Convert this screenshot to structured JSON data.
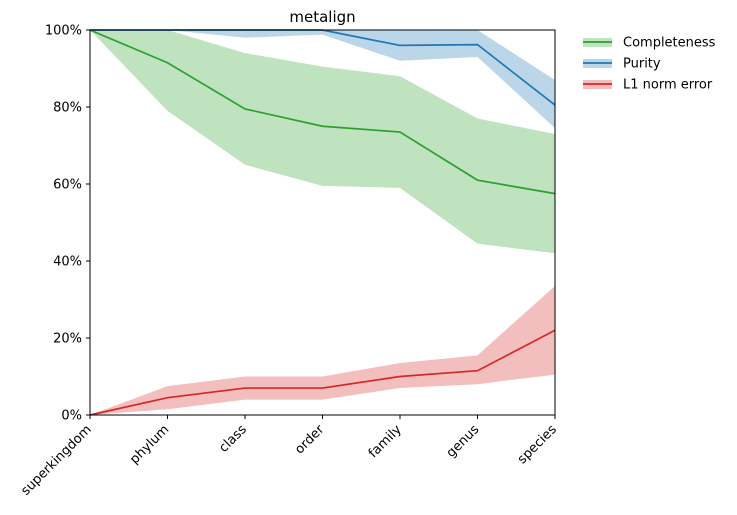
{
  "chart_data": {
    "type": "line",
    "title": "metalign",
    "xlabel": "",
    "ylabel": "",
    "categories": [
      "superkingdom",
      "phylum",
      "class",
      "order",
      "family",
      "genus",
      "species"
    ],
    "yticks": [
      "0%",
      "20%",
      "40%",
      "60%",
      "80%",
      "100%"
    ],
    "ylim": [
      0,
      100
    ],
    "grid": false,
    "legend_position": "outside-top-right",
    "series": [
      {
        "name": "Completeness",
        "color": "#2ca02c",
        "band_color": "#2ca02c",
        "values": [
          100,
          91.5,
          79.5,
          75,
          73.5,
          61,
          57.5
        ],
        "lower": [
          100,
          79,
          65,
          59.5,
          59,
          44.5,
          42
        ],
        "upper": [
          100,
          100,
          94,
          90.5,
          88,
          77,
          73
        ]
      },
      {
        "name": "Purity",
        "color": "#1f77b4",
        "band_color": "#1f77b4",
        "values": [
          100,
          100,
          100,
          100,
          96,
          96.2,
          80.5
        ],
        "lower": [
          100,
          100,
          98,
          98.8,
          92,
          93,
          74.5
        ],
        "upper": [
          100,
          100,
          100,
          100,
          100,
          100,
          87
        ]
      },
      {
        "name": "L1 norm error",
        "color": "#d62728",
        "band_color": "#d62728",
        "values": [
          0,
          4.5,
          7,
          7,
          10,
          11.5,
          22
        ],
        "lower": [
          0,
          1.5,
          4,
          4,
          7,
          8,
          10.5
        ],
        "upper": [
          0,
          7.5,
          10,
          10,
          13.5,
          15.5,
          33.5
        ]
      }
    ]
  }
}
